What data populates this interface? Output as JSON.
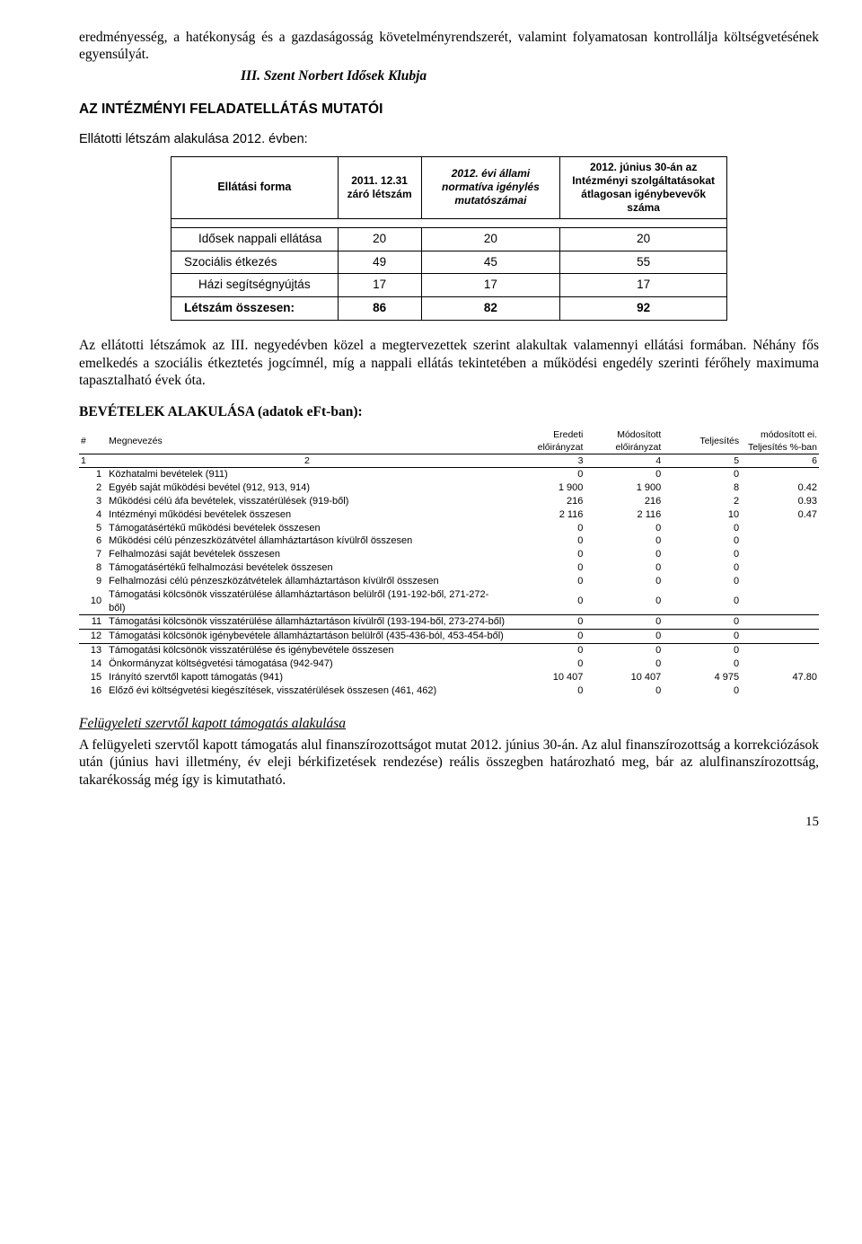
{
  "intro": {
    "p1": "eredményesség, a hatékonyság és a gazdaságosság követelményrendszerét, valamint folyamatosan kontrollálja költségvetésének egyensúlyát.",
    "section": "III.    Szent Norbert Idősek Klubja"
  },
  "headings": {
    "mutatoi": "AZ INTÉZMÉNYI FELADATELLÁTÁS MUTATÓI",
    "sub": "Ellátotti létszám alakulása 2012. évben:"
  },
  "table1": {
    "headers": {
      "c0": "Ellátási forma",
      "c1": "2011. 12.31 záró létszám",
      "c2": "2012. évi állami normatíva igénylés mutatószámai",
      "c3": "2012. június 30-án az Intézményi szolgáltatásokat átlagosan igénybevevők száma"
    },
    "rows": [
      {
        "label": "Idősek nappali ellátása",
        "v1": "20",
        "v2": "20",
        "v3": "20"
      },
      {
        "label": "Szociális étkezés",
        "v1": "49",
        "v2": "45",
        "v3": "55"
      },
      {
        "label": "Házi segítségnyújtás",
        "v1": "17",
        "v2": "17",
        "v3": "17"
      },
      {
        "label": "Létszám összesen:",
        "v1": "86",
        "v2": "82",
        "v3": "92"
      }
    ]
  },
  "mid": {
    "p1": "Az ellátotti létszámok az III. negyedévben közel a megtervezettek szerint alakultak valamennyi ellátási formában. Néhány fős emelkedés a szociális étkeztetés jogcímnél, míg a nappali ellátás tekintetében a működési engedély szerinti férőhely maximuma tapasztalható évek óta."
  },
  "bev_title": "BEVÉTELEK ALAKULÁSA (adatok eFt-ban):",
  "table2": {
    "head1": {
      "c0": "#",
      "c1": "Megnevezés",
      "c2": "Eredeti előirányzat",
      "c3": "Módosított előirányzat",
      "c4": "Teljesítés",
      "c5": "módosított ei. Teljesítés %-ban"
    },
    "head2": {
      "c0": "1",
      "c1": "2",
      "c2": "3",
      "c3": "4",
      "c4": "5",
      "c5": "6"
    },
    "rows": [
      {
        "n": "1",
        "label": "Közhatalmi bevételek (911)",
        "v": [
          "0",
          "0",
          "0",
          ""
        ]
      },
      {
        "n": "2",
        "label": "Egyéb saját működési bevétel (912, 913, 914)",
        "v": [
          "1 900",
          "1 900",
          "8",
          "0.42"
        ]
      },
      {
        "n": "3",
        "label": "Működési célú áfa bevételek, visszatérülések (919-ből)",
        "v": [
          "216",
          "216",
          "2",
          "0.93"
        ]
      },
      {
        "n": "4",
        "label": "Intézményi működési bevételek összesen",
        "v": [
          "2 116",
          "2 116",
          "10",
          "0.47"
        ]
      },
      {
        "n": "5",
        "label": "Támogatásértékű működési bevételek összesen",
        "v": [
          "0",
          "0",
          "0",
          ""
        ]
      },
      {
        "n": "6",
        "label": "Működési célú pénzeszközátvétel államháztartáson kívülről összesen",
        "v": [
          "0",
          "0",
          "0",
          ""
        ]
      },
      {
        "n": "7",
        "label": "Felhalmozási saját bevételek összesen",
        "v": [
          "0",
          "0",
          "0",
          ""
        ]
      },
      {
        "n": "8",
        "label": "Támogatásértékű felhalmozási bevételek összesen",
        "v": [
          "0",
          "0",
          "0",
          ""
        ]
      },
      {
        "n": "9",
        "label": "Felhalmozási célú pénzeszközátvételek államháztartáson kívülről összesen",
        "v": [
          "0",
          "0",
          "0",
          ""
        ]
      },
      {
        "n": "10",
        "label": "Támogatási kölcsönök visszatérülése államháztartáson belülről (191-192-ből, 271-272-ből)",
        "v": [
          "0",
          "0",
          "0",
          ""
        ]
      },
      {
        "n": "11",
        "label": "Támogatási kölcsönök visszatérülése államháztartáson kívülről (193-194-ből, 273-274-ből)",
        "v": [
          "0",
          "0",
          "0",
          ""
        ],
        "sep": true
      },
      {
        "n": "12",
        "label": "Támogatási kölcsönök igénybevétele államháztartáson belülről (435-436-ból, 453-454-ből)",
        "v": [
          "0",
          "0",
          "0",
          ""
        ],
        "sep": true
      },
      {
        "n": "13",
        "label": "Támogatási kölcsönök visszatérülése és igénybevétele összesen",
        "v": [
          "0",
          "0",
          "0",
          ""
        ],
        "sep": true
      },
      {
        "n": "14",
        "label": "Önkormányzat költségvetési támogatása (942-947)",
        "v": [
          "0",
          "0",
          "0",
          ""
        ]
      },
      {
        "n": "15",
        "label": "Irányító szervtől kapott támogatás (941)",
        "v": [
          "10 407",
          "10 407",
          "4 975",
          "47.80"
        ]
      },
      {
        "n": "16",
        "label": "Előző évi költségvetési kiegészítések, visszatérülések összesen (461, 462)",
        "v": [
          "0",
          "0",
          "0",
          ""
        ]
      }
    ]
  },
  "closing": {
    "title": "Felügyeleti szervtől kapott támogatás alakulása",
    "p": "A felügyeleti szervtől kapott támogatás alul finanszírozottságot mutat 2012. június 30-án. Az alul finanszírozottság a korrekciózások után (június havi illetmény, év eleji bérkifizetések rendezése) reális összegben határozható meg, bár az alulfinanszírozottság, takarékosság még így is kimutatható."
  },
  "page": "15"
}
